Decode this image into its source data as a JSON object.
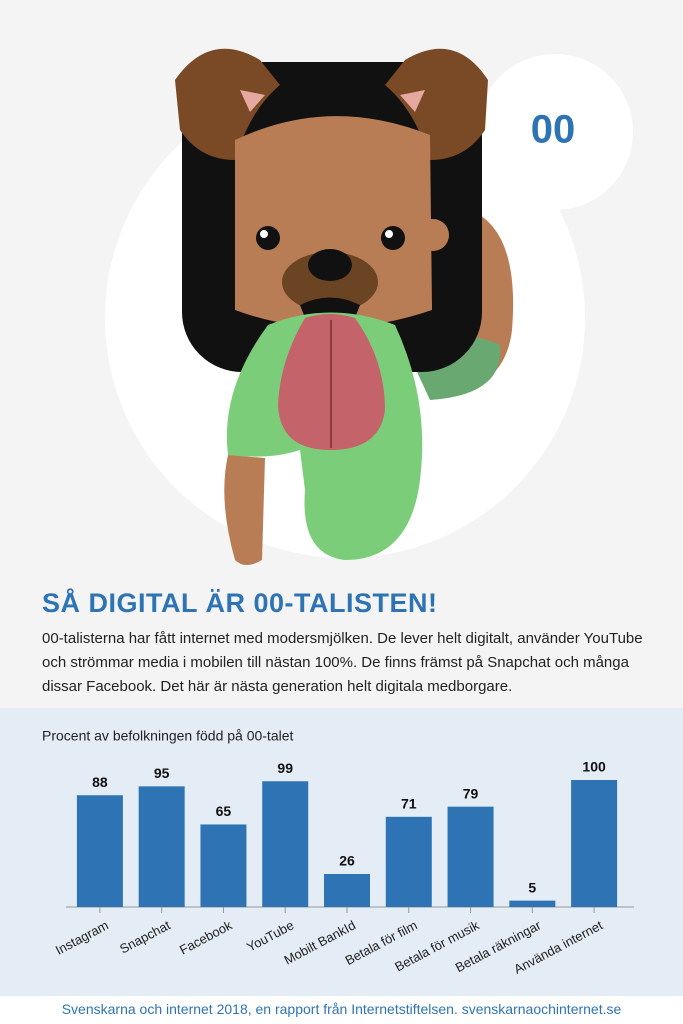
{
  "badge": "00",
  "heading": "SÅ DIGITAL ÄR 00-TALISTEN!",
  "intro": "00-talisterna har fått internet med modersmjölken. De lever helt digitalt, använder YouTube och strömmar media i mobilen till nästan 100%. De finns främst på Snapchat och många dissar Facebook. Det här är nästa generation helt digitala medborgare.",
  "chart_data": {
    "type": "bar",
    "subtitle": "Procent av befolkningen född på 00-talet",
    "categories": [
      "Instagram",
      "Snapchat",
      "Facebook",
      "YouTube",
      "Mobilt BankId",
      "Betala för film",
      "Betala för musik",
      "Betala räkningar",
      "Använda internet"
    ],
    "values": [
      88,
      95,
      65,
      99,
      26,
      71,
      79,
      5,
      100
    ],
    "color": "#2e74b5",
    "ylim": [
      0,
      100
    ]
  },
  "footer": "Svenskarna och internet 2018, en rapport från Internetstiftelsen. svenskarnaochinternet.se"
}
